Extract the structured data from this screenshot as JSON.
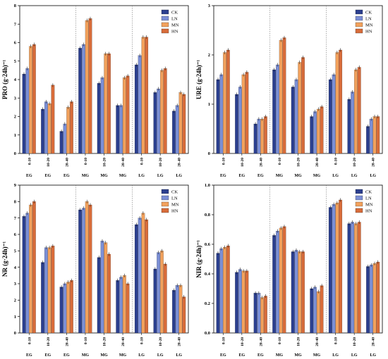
{
  "colors": {
    "CK": "#2b3f8f",
    "LN": "#7b8fd6",
    "MN": "#f2a15c",
    "HN": "#d86c3a"
  },
  "chart_data": [
    {
      "type": "bar",
      "ylabel": "PRO (g·24h)⁻¹",
      "ylim": [
        0,
        8
      ],
      "yticks": [
        "0",
        "1",
        "2",
        "3",
        "4",
        "5",
        "6",
        "7",
        "8"
      ],
      "categories": [
        "0-10",
        "10-20",
        "20-40",
        "0-10",
        "10-20",
        "20-40",
        "0-10",
        "10-20",
        "20-40"
      ],
      "groups": [
        "EG",
        "EG",
        "EG",
        "MG",
        "MG",
        "MG",
        "LG",
        "LG",
        "LG"
      ],
      "series": [
        {
          "name": "CK",
          "values": [
            4.3,
            2.4,
            1.2,
            5.7,
            3.8,
            2.6,
            4.8,
            3.3,
            2.3
          ]
        },
        {
          "name": "LN",
          "values": [
            4.6,
            2.8,
            1.6,
            5.9,
            4.1,
            2.6,
            5.3,
            3.5,
            2.6
          ]
        },
        {
          "name": "MN",
          "values": [
            5.8,
            2.7,
            2.5,
            7.2,
            5.4,
            4.1,
            6.3,
            4.5,
            3.3
          ]
        },
        {
          "name": "HN",
          "values": [
            5.9,
            3.7,
            2.8,
            7.3,
            5.4,
            4.2,
            6.3,
            4.6,
            3.2
          ]
        }
      ],
      "legend": [
        "CK",
        "LN",
        "MN",
        "HN"
      ]
    },
    {
      "type": "bar",
      "ylabel": "URE (g·24h)⁻¹",
      "ylim": [
        0,
        3
      ],
      "yticks": [
        "0",
        "1",
        "2",
        "3"
      ],
      "categories": [
        "0-10",
        "10-20",
        "20-40",
        "0-10",
        "10-20",
        "20-40",
        "0-10",
        "10-20",
        "20-40"
      ],
      "groups": [
        "EG",
        "EG",
        "EG",
        "MG",
        "MG",
        "MG",
        "LG",
        "LG",
        "LG"
      ],
      "series": [
        {
          "name": "CK",
          "values": [
            1.5,
            1.2,
            0.6,
            1.7,
            1.35,
            0.75,
            1.5,
            1.1,
            0.55
          ]
        },
        {
          "name": "LN",
          "values": [
            1.6,
            1.35,
            0.7,
            1.8,
            1.5,
            0.85,
            1.6,
            1.25,
            0.7
          ]
        },
        {
          "name": "MN",
          "values": [
            2.05,
            1.6,
            0.7,
            2.3,
            1.85,
            0.9,
            2.05,
            1.7,
            0.75
          ]
        },
        {
          "name": "HN",
          "values": [
            2.1,
            1.65,
            0.75,
            2.35,
            1.95,
            0.95,
            2.1,
            1.75,
            0.75
          ]
        }
      ],
      "legend": [
        "CK",
        "LN",
        "MN",
        "HN"
      ]
    },
    {
      "type": "bar",
      "ylabel": "NR (g·24h)⁻¹",
      "ylim": [
        0,
        9
      ],
      "yticks": [
        "0",
        "1",
        "2",
        "3",
        "4",
        "5",
        "6",
        "7",
        "8",
        "9"
      ],
      "categories": [
        "0-10",
        "10-20",
        "20-40",
        "0-10",
        "10-20",
        "20-40",
        "0-10",
        "10-20",
        "20-40"
      ],
      "groups": [
        "EG",
        "EG",
        "EG",
        "MG",
        "MG",
        "MG",
        "LG",
        "LG",
        "LG"
      ],
      "series": [
        {
          "name": "CK",
          "values": [
            7.1,
            4.3,
            2.8,
            7.5,
            4.6,
            3.2,
            6.6,
            3.9,
            2.6
          ]
        },
        {
          "name": "LN",
          "values": [
            7.3,
            5.2,
            3.0,
            7.6,
            5.6,
            3.4,
            7.0,
            4.9,
            2.9
          ]
        },
        {
          "name": "MN",
          "values": [
            7.8,
            5.2,
            3.1,
            8.0,
            5.5,
            3.5,
            7.3,
            5.0,
            2.9
          ]
        },
        {
          "name": "HN",
          "values": [
            8.0,
            5.3,
            3.2,
            7.8,
            4.8,
            3.0,
            6.9,
            4.2,
            2.2
          ]
        }
      ],
      "legend": [
        "CK",
        "LN",
        "MN",
        "HN"
      ]
    },
    {
      "type": "bar",
      "ylabel": "NIR (g·24h)⁻¹",
      "ylim": [
        0,
        1.0
      ],
      "yticks": [
        "0.0",
        "0.2",
        "0.4",
        "0.6",
        "0.8",
        "1.0"
      ],
      "categories": [
        "0-10",
        "10-20",
        "20-40",
        "0-10",
        "10-20",
        "20-40",
        "0-10",
        "10-20",
        "20-40"
      ],
      "groups": [
        "EG",
        "EG",
        "EG",
        "MG",
        "MG",
        "MG",
        "LG",
        "LG",
        "LG"
      ],
      "series": [
        {
          "name": "CK",
          "values": [
            0.54,
            0.41,
            0.27,
            0.66,
            0.55,
            0.3,
            0.85,
            0.74,
            0.45
          ]
        },
        {
          "name": "LN",
          "values": [
            0.57,
            0.43,
            0.27,
            0.69,
            0.56,
            0.31,
            0.87,
            0.75,
            0.46
          ]
        },
        {
          "name": "MN",
          "values": [
            0.58,
            0.42,
            0.24,
            0.71,
            0.55,
            0.28,
            0.88,
            0.74,
            0.47
          ]
        },
        {
          "name": "HN",
          "values": [
            0.59,
            0.42,
            0.25,
            0.72,
            0.55,
            0.32,
            0.9,
            0.75,
            0.48
          ]
        }
      ],
      "legend": [
        "CK",
        "LN",
        "MN",
        "HN"
      ]
    }
  ]
}
